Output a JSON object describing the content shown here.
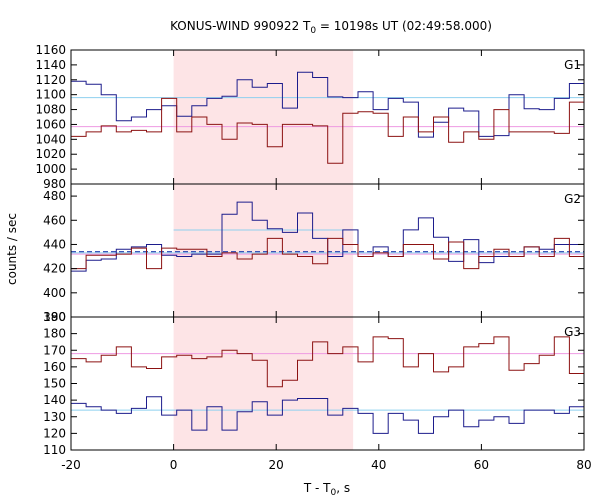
{
  "chart_data": {
    "type": "line",
    "title": "KONUS-WIND 990922 T0 = 10198s UT (02:49:58.000)",
    "title_parts": {
      "pre": "KONUS-WIND 990922 T",
      "sub": "0",
      "post": " = 10198s UT (02:49:58.000)"
    },
    "xlabel_parts": {
      "pre": "T - T",
      "sub": "0",
      "post": ", s"
    },
    "ylabel": "counts / sec",
    "xlim": [
      -20,
      80
    ],
    "x_ticks": [
      -20,
      0,
      20,
      40,
      60,
      80
    ],
    "x_tick_labels": [
      "-20",
      "0",
      "20",
      "40",
      "60",
      "80"
    ],
    "shaded_interval": {
      "x": [
        0,
        35
      ],
      "color": "#fde4e6"
    },
    "colors": {
      "blue": "#1c1c8c",
      "red": "#8c1212",
      "light_blue": "#8ed0ef",
      "light_pink": "#ee9ae2",
      "dash_blue": "#2040b0"
    },
    "bin_width": 2.944,
    "panels": [
      {
        "label": "G1",
        "ylim": [
          980,
          1160
        ],
        "y_ticks": [
          980,
          1000,
          1020,
          1040,
          1060,
          1080,
          1100,
          1120,
          1140,
          1160
        ],
        "y_tick_labels": [
          "980",
          "1000",
          "1020",
          "1040",
          "1060",
          "1080",
          "1100",
          "1120",
          "1140",
          "1160"
        ],
        "x_tick_labels_shown": false,
        "series": [
          {
            "color_key": "blue",
            "x_start": -20,
            "values": [
              1118,
              1114,
              1100,
              1065,
              1070,
              1080,
              1085,
              1071,
              1085,
              1095,
              1098,
              1120,
              1110,
              1115,
              1082,
              1130,
              1123,
              1097,
              1096,
              1104,
              1080,
              1095,
              1090,
              1043,
              1063,
              1082,
              1078,
              1044,
              1045,
              1100,
              1081,
              1080,
              1095,
              1115,
              1085,
              1075,
              1100,
              1070,
              1080
            ]
          },
          {
            "color_key": "red",
            "x_start": -20,
            "values": [
              1044,
              1050,
              1058,
              1050,
              1052,
              1050,
              1095,
              1050,
              1070,
              1060,
              1040,
              1062,
              1060,
              1030,
              1060,
              1060,
              1058,
              1008,
              1075,
              1077,
              1075,
              1044,
              1070,
              1050,
              1070,
              1036,
              1050,
              1040,
              1080,
              1050,
              1050,
              1050,
              1048,
              1090,
              1040,
              1065,
              1056
            ]
          }
        ],
        "fits": [
          {
            "color_key": "light_blue",
            "value": 1096,
            "dashed": false
          },
          {
            "color_key": "light_pink",
            "value": 1057,
            "dashed": false
          }
        ]
      },
      {
        "label": "G2",
        "ylim": [
          380,
          490
        ],
        "y_ticks": [
          380,
          400,
          420,
          440,
          460,
          480
        ],
        "y_tick_labels": [
          "380",
          "400",
          "420",
          "440",
          "460",
          "480"
        ],
        "x_tick_labels_shown": false,
        "series": [
          {
            "color_key": "blue",
            "x_start": -20,
            "values": [
              418,
              427,
              428,
              436,
              438,
              440,
              431,
              430,
              432,
              432,
              465,
              475,
              460,
              453,
              450,
              466,
              445,
              430,
              452,
              430,
              438,
              430,
              452,
              462,
              446,
              426,
              444,
              425,
              430,
              430,
              438,
              436,
              440,
              440,
              440,
              443,
              456,
              440,
              430
            ]
          },
          {
            "color_key": "red",
            "x_start": -20,
            "values": [
              420,
              431,
              431,
              432,
              437,
              420,
              437,
              436,
              436,
              430,
              433,
              428,
              432,
              445,
              432,
              430,
              424,
              445,
              440,
              430,
              433,
              430,
              440,
              440,
              428,
              442,
              420,
              430,
              436,
              430,
              438,
              430,
              445,
              430,
              432,
              436,
              434
            ]
          }
        ],
        "fits": [
          {
            "color_key": "light_blue",
            "value": 433,
            "dashed": false
          },
          {
            "color_key": "light_blue",
            "value": 452,
            "dashed": false,
            "x_range": [
              0,
              35
            ]
          },
          {
            "color_key": "light_pink",
            "value": 432,
            "dashed": false
          },
          {
            "color_key": "dash_blue",
            "value": 434,
            "dashed": true
          }
        ]
      },
      {
        "label": "G3",
        "ylim": [
          110,
          190
        ],
        "y_ticks": [
          110,
          120,
          130,
          140,
          150,
          160,
          170,
          180,
          190
        ],
        "y_tick_labels": [
          "110",
          "120",
          "130",
          "140",
          "150",
          "160",
          "170",
          "180",
          "190"
        ],
        "x_tick_labels_shown": true,
        "series": [
          {
            "color_key": "blue",
            "x_start": -20,
            "values": [
              138,
              136,
              134,
              132,
              135,
              142,
              131,
              134,
              122,
              136,
              122,
              133,
              139,
              131,
              140,
              141,
              141,
              131,
              135,
              132,
              120,
              132,
              128,
              120,
              130,
              134,
              124,
              128,
              130,
              126,
              134,
              134,
              132,
              136,
              138,
              132,
              134,
              136,
              134
            ]
          },
          {
            "color_key": "red",
            "x_start": -20,
            "values": [
              165,
              163,
              167,
              172,
              160,
              159,
              166,
              167,
              165,
              166,
              170,
              168,
              164,
              148,
              152,
              164,
              175,
              168,
              172,
              163,
              178,
              177,
              160,
              168,
              157,
              160,
              172,
              174,
              178,
              158,
              162,
              167,
              178,
              156,
              158,
              168,
              175
            ]
          }
        ],
        "fits": [
          {
            "color_key": "light_blue",
            "value": 134,
            "dashed": false
          },
          {
            "color_key": "light_pink",
            "value": 168,
            "dashed": false
          }
        ]
      }
    ]
  }
}
